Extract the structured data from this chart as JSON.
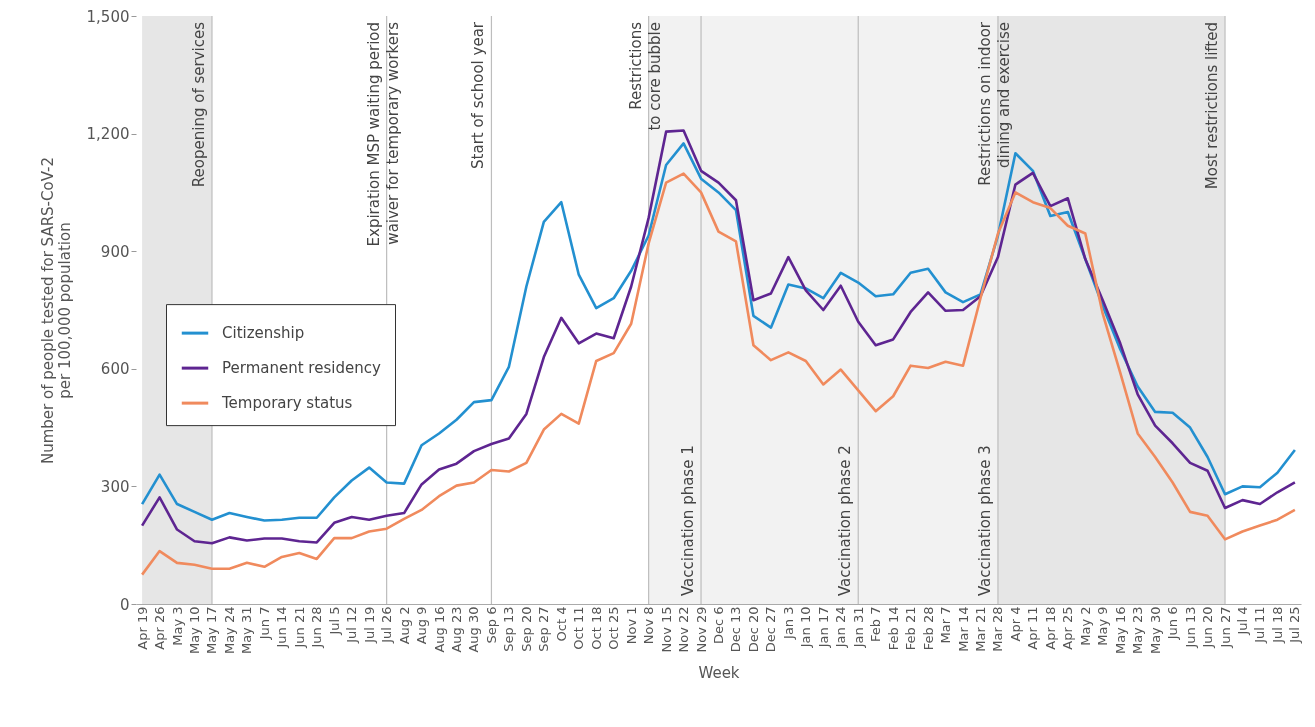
{
  "chart_data": {
    "type": "line",
    "xlabel": "Week",
    "ylabel": "Number of people tested for SARS-CoV-2\nper 100,000 population",
    "categories": [
      "Apr 19",
      "Apr 26",
      "May 3",
      "May 10",
      "May 17",
      "May 24",
      "May 31",
      "Jun 7",
      "Jun 14",
      "Jun 21",
      "Jun 28",
      "Jul 5",
      "Jul 12",
      "Jul 19",
      "Jul 26",
      "Aug 2",
      "Aug 9",
      "Aug 16",
      "Aug 23",
      "Aug 30",
      "Sep 6",
      "Sep 13",
      "Sep 20",
      "Sep 27",
      "Oct 4",
      "Oct 11",
      "Oct 18",
      "Oct 25",
      "Nov 1",
      "Nov 8",
      "Nov 15",
      "Nov 22",
      "Nov 29",
      "Dec 6",
      "Dec 13",
      "Dec 20",
      "Dec 27",
      "Jan 3",
      "Jan 10",
      "Jan 17",
      "Jan 24",
      "Jan 31",
      "Feb 7",
      "Feb 14",
      "Feb 21",
      "Feb 28",
      "Mar 7",
      "Mar 14",
      "Mar 21",
      "Mar 28",
      "Apr 4",
      "Apr 11",
      "Apr 18",
      "Apr 25",
      "May 2",
      "May 9",
      "May 16",
      "May 23",
      "May 30",
      "Jun 6",
      "Jun 13",
      "Jun 20",
      "Jun 27",
      "Jul 4",
      "Jul 11",
      "Jul 18",
      "Jul 25"
    ],
    "series": [
      {
        "name": "Citizenship",
        "color": "#2390d0",
        "values": [
          255,
          330,
          255,
          235,
          215,
          232,
          222,
          213,
          215,
          220,
          220,
          272,
          315,
          348,
          310,
          307,
          405,
          435,
          470,
          515,
          520,
          605,
          810,
          975,
          1025,
          840,
          755,
          780,
          850,
          940,
          1120,
          1175,
          1085,
          1050,
          1005,
          735,
          705,
          815,
          805,
          780,
          845,
          820,
          785,
          790,
          845,
          855,
          795,
          770,
          790,
          940,
          1150,
          1105,
          990,
          1000,
          880,
          760,
          650,
          555,
          490,
          488,
          450,
          375,
          280,
          300,
          298,
          335,
          393
        ]
      },
      {
        "name": "Permanent residency",
        "color": "#5e2591",
        "values": [
          200,
          272,
          190,
          160,
          155,
          170,
          162,
          167,
          167,
          160,
          157,
          207,
          222,
          215,
          225,
          232,
          305,
          343,
          358,
          390,
          408,
          422,
          485,
          630,
          730,
          665,
          690,
          678,
          810,
          985,
          1205,
          1208,
          1105,
          1075,
          1030,
          775,
          792,
          885,
          800,
          750,
          812,
          720,
          660,
          675,
          745,
          795,
          748,
          750,
          785,
          885,
          1070,
          1100,
          1015,
          1035,
          880,
          775,
          665,
          535,
          455,
          410,
          360,
          340,
          245,
          265,
          255,
          285,
          310
        ]
      },
      {
        "name": "Temporary status",
        "color": "#f08a5d",
        "values": [
          75,
          135,
          105,
          100,
          90,
          90,
          105,
          95,
          120,
          130,
          115,
          168,
          168,
          185,
          192,
          217,
          240,
          275,
          302,
          310,
          342,
          338,
          360,
          445,
          485,
          460,
          620,
          640,
          715,
          920,
          1075,
          1098,
          1050,
          950,
          925,
          660,
          622,
          642,
          620,
          560,
          598,
          545,
          492,
          530,
          608,
          602,
          618,
          608,
          780,
          945,
          1050,
          1025,
          1010,
          965,
          945,
          740,
          590,
          435,
          375,
          310,
          235,
          225,
          165,
          185,
          200,
          215,
          240
        ]
      }
    ],
    "ylim": [
      0,
      1500
    ],
    "yticks": [
      0,
      300,
      600,
      900,
      {
        "value": 1200,
        "label": "1,200"
      },
      {
        "value": 1500,
        "label": "1,500"
      }
    ],
    "legend": "left",
    "bands": [
      {
        "axis": "x",
        "from": "Apr 19",
        "to": "May 17",
        "color": "#e6e6e6"
      },
      {
        "axis": "x",
        "from": "Nov 8",
        "to": "Mar 28",
        "color": "#f2f2f2"
      },
      {
        "axis": "x",
        "from": "Mar 28",
        "to": "Jun 27",
        "color": "#e6e6e6"
      }
    ],
    "ref_lines": [
      {
        "axis": "x",
        "value": "May 17",
        "color": "#bdbdbd"
      },
      {
        "axis": "x",
        "value": "Jul 26",
        "color": "#bdbdbd"
      },
      {
        "axis": "x",
        "value": "Sep 6",
        "color": "#bdbdbd"
      },
      {
        "axis": "x",
        "value": "Nov 8",
        "color": "#bdbdbd"
      },
      {
        "axis": "x",
        "value": "Nov 29",
        "color": "#bdbdbd"
      },
      {
        "axis": "x",
        "value": "Jan 31",
        "color": "#bdbdbd"
      },
      {
        "axis": "x",
        "value": "Mar 28",
        "color": "#bdbdbd"
      },
      {
        "axis": "x",
        "value": "Jun 27",
        "color": "#bdbdbd"
      }
    ],
    "annotations": [
      {
        "text": "Reopening of services",
        "x": "May 17",
        "y": 1500
      },
      {
        "text": "Expiration MSP waiting period\nwaiver for temporary workers",
        "x": "Jul 26",
        "y": 1500
      },
      {
        "text": "Start of school year",
        "x": "Sep 6",
        "y": 1500
      },
      {
        "text": "Restrictions\nto core bubble",
        "x": "Nov 8",
        "y": 1500
      },
      {
        "text": "Vaccination phase 1",
        "x": "Nov 29",
        "y": 0
      },
      {
        "text": "Vaccination phase 2",
        "x": "Jan 31",
        "y": 0
      },
      {
        "text": "Restrictions on indoor\ndining and exercise",
        "x": "Mar 28",
        "y": 1500
      },
      {
        "text": "Vaccination phase 3",
        "x": "Mar 28",
        "y": 0
      },
      {
        "text": "Most restrictions lifted",
        "x": "Jun 27",
        "y": 1500
      }
    ]
  }
}
